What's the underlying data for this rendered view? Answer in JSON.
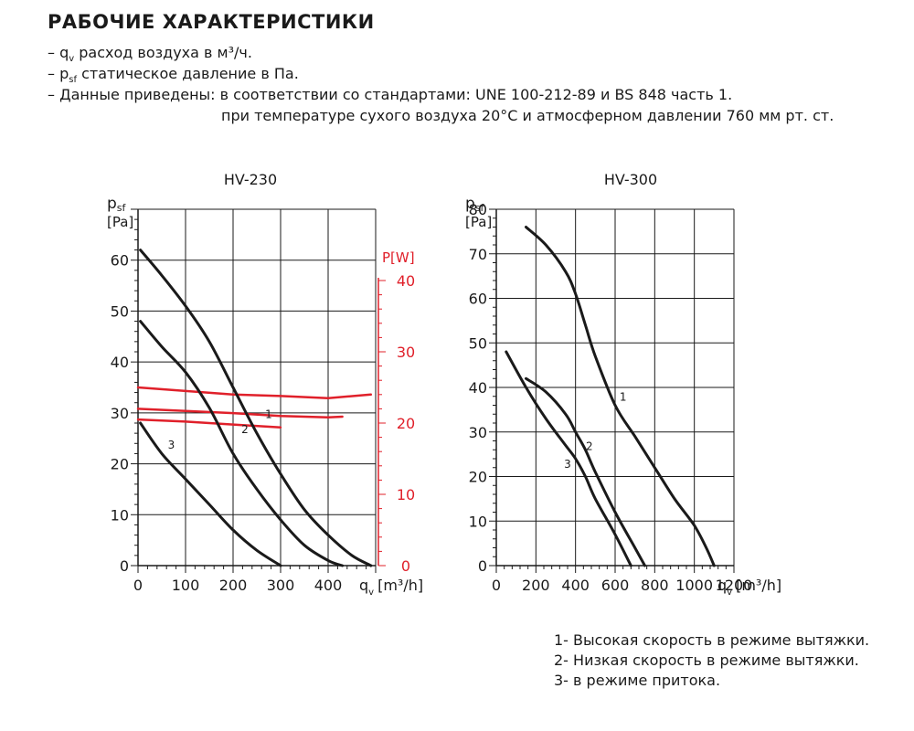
{
  "header": {
    "title": "РАБОЧИЕ ХАРАКТЕРИСТИКИ",
    "notes": [
      {
        "dash": "– ",
        "sym": "q",
        "sub": "v",
        "text": " расход воздуха в м³/ч."
      },
      {
        "dash": "– ",
        "sym": "p",
        "sub": "sf",
        "text": " статическое давление в Па."
      },
      {
        "dash": "– ",
        "sym": "",
        "sub": "",
        "text": "Данные приведены: в соответствии со стандартами: UNE 100-212-89 и BS 848 часть 1."
      }
    ],
    "note_cont": "при температуре сухого воздуха 20°C и атмосферном давлении 760 мм рт. ст."
  },
  "legend": [
    "1- Высокая скорость в режиме вытяжки.",
    "2- Низкая скорость в режиме вытяжки.",
    "3- в режиме притока."
  ],
  "colors": {
    "curve": "#1a1a1a",
    "power": "#e0202a",
    "grid": "#1a1a1a"
  },
  "chart_data": [
    {
      "type": "line",
      "title": "HV-230",
      "ylabel": "p",
      "ylabel_sub": "sf",
      "yunit": "[Pa]",
      "xlabel": "q",
      "xlabel_sub": "v",
      "xunit": "[m³/h]",
      "xlim": [
        0,
        500
      ],
      "ylim": [
        0,
        70
      ],
      "xticks": [
        0,
        100,
        200,
        300,
        400
      ],
      "yticks": [
        0,
        10,
        20,
        30,
        40,
        50,
        60
      ],
      "y2label": "P[W]",
      "y2lim": [
        0,
        50
      ],
      "y2ticks": [
        0,
        10,
        20,
        30,
        40
      ],
      "series": [
        {
          "name": "1",
          "x": [
            5,
            50,
            100,
            150,
            200,
            250,
            300,
            350,
            400,
            450,
            490
          ],
          "y": [
            62,
            57,
            51,
            44,
            35,
            26,
            18,
            11,
            6,
            2,
            0
          ],
          "label_at": [
            275,
            29
          ]
        },
        {
          "name": "2",
          "x": [
            5,
            50,
            100,
            150,
            200,
            250,
            300,
            350,
            400,
            430
          ],
          "y": [
            48,
            43,
            38,
            31,
            22,
            15,
            9,
            4,
            1,
            0
          ],
          "label_at": [
            225,
            26
          ]
        },
        {
          "name": "3",
          "x": [
            5,
            50,
            100,
            150,
            200,
            250,
            300
          ],
          "y": [
            28,
            22,
            17,
            12,
            7,
            3,
            0
          ],
          "label_at": [
            70,
            23
          ]
        }
      ],
      "power_series": [
        {
          "name": "1",
          "x": [
            0,
            100,
            200,
            300,
            400,
            490
          ],
          "y": [
            25,
            24.5,
            24,
            23.8,
            23.5,
            24
          ]
        },
        {
          "name": "2",
          "x": [
            0,
            100,
            200,
            300,
            400,
            430
          ],
          "y": [
            22,
            21.7,
            21.4,
            21,
            20.8,
            20.9
          ]
        },
        {
          "name": "3",
          "x": [
            0,
            100,
            200,
            300
          ],
          "y": [
            20.5,
            20.2,
            19.8,
            19.4
          ]
        }
      ]
    },
    {
      "type": "line",
      "title": "HV-300",
      "ylabel": "p",
      "ylabel_sub": "sf",
      "yunit": "[Pa]",
      "xlabel": "q",
      "xlabel_sub": "v",
      "xunit": "[m³/h]",
      "xlim": [
        0,
        1200
      ],
      "ylim": [
        0,
        80
      ],
      "xticks": [
        0,
        200,
        400,
        600,
        800,
        1000,
        1200
      ],
      "yticks": [
        0,
        10,
        20,
        30,
        40,
        50,
        60,
        70,
        80
      ],
      "series": [
        {
          "name": "1",
          "x": [
            150,
            250,
            350,
            400,
            450,
            500,
            600,
            700,
            800,
            900,
            1000,
            1060,
            1100
          ],
          "y": [
            76,
            72,
            66,
            61,
            54,
            47,
            36,
            29,
            22,
            15,
            9,
            4,
            0
          ],
          "label_at": [
            640,
            37
          ]
        },
        {
          "name": "2",
          "x": [
            150,
            250,
            350,
            400,
            450,
            500,
            600,
            700,
            750
          ],
          "y": [
            42,
            39,
            34,
            30,
            26,
            21,
            12,
            4,
            0
          ],
          "label_at": [
            470,
            26
          ]
        },
        {
          "name": "3",
          "x": [
            50,
            150,
            250,
            350,
            400,
            450,
            500,
            600,
            680
          ],
          "y": [
            48,
            40,
            33,
            27,
            24,
            20,
            15,
            7,
            0
          ],
          "label_at": [
            360,
            22
          ]
        }
      ]
    }
  ]
}
